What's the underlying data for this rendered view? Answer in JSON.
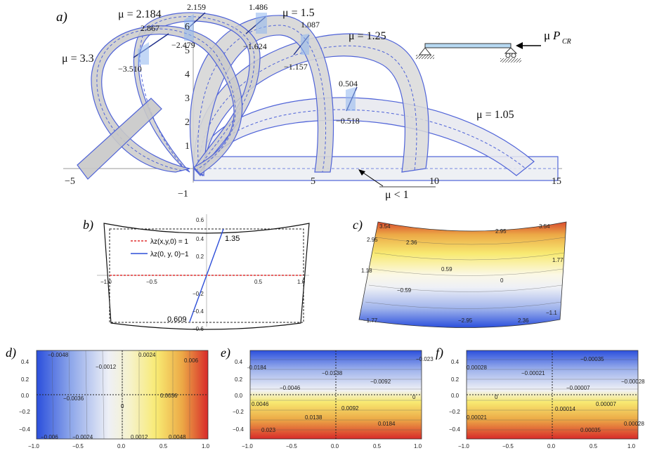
{
  "panels": {
    "a": {
      "label": "a)",
      "x_ticks": [
        "−5",
        "5",
        "10",
        "15"
      ],
      "y_ticks": [
        "−1",
        "1",
        "2",
        "3",
        "4",
        "5",
        "6"
      ],
      "mu_labels": [
        "μ = 3.3",
        "μ = 2.184",
        "μ = 1.5",
        "μ = 1.25",
        "μ = 1.05",
        "μ < 1"
      ],
      "values": [
        "2.867",
        "−3.510",
        "2.159",
        "−2.479",
        "1.486",
        "−1.624",
        "1.087",
        "−1.157",
        "0.504",
        "−0.518"
      ],
      "load_label_mu": "μ",
      "load_label_p": "P",
      "load_label_sub": "CR"
    },
    "b": {
      "label": "b)",
      "legend": [
        "λz(x,y,0) = 1",
        "λz(0, y, 0)−1"
      ],
      "x_ticks": [
        "−1.0",
        "−0.5",
        "0.5",
        "1.0"
      ],
      "y_ticks": [
        "0.6",
        "0.4",
        "0.2",
        "−0.2",
        "−0.4",
        "−0.6"
      ],
      "annotations": [
        "1.35",
        "0.609"
      ]
    },
    "c": {
      "label": "c)",
      "contour_labels": [
        "3.54",
        "2.95",
        "3.54",
        "2.95",
        "2.36",
        "1.77",
        "1.18",
        "0.59",
        "0",
        "−0.59",
        "−1.1",
        "−1.77",
        "−2.95",
        "2.36"
      ]
    },
    "d": {
      "label": "d)",
      "contour_labels": [
        "−0.0048",
        "−0.0012",
        "0.0024",
        "0.006",
        "−0.0036",
        "0",
        "0.0036",
        "−0.006",
        "−0.0024",
        "0.0012",
        "0.0048"
      ]
    },
    "e": {
      "label": "e)",
      "contour_labels": [
        "-0.0184",
        "−0.0138",
        "−0.0092",
        "−0.0046",
        "0.0046",
        "0.0092",
        "0.0138",
        "0.0184",
        "0.023",
        "0",
        "−0.023"
      ]
    },
    "f": {
      "label": "f)",
      "contour_labels": [
        "0.00028",
        "−0.00035",
        "−0.00021",
        "−0.00007",
        "0",
        "0.00014",
        "0.00007",
        "0.00035",
        "0.00021",
        "0.00028",
        "−0.00028"
      ]
    },
    "shared_axes": {
      "x_ticks": [
        "−1.0",
        "−0.5",
        "0.0",
        "0.5",
        "1.0"
      ],
      "y_ticks": [
        "0.4",
        "0.2",
        "0.0",
        "−0.2",
        "−0.4"
      ]
    }
  },
  "colors": {
    "band_fill": "#d6d6d6",
    "band_stroke": "#4f63d8",
    "band_light": "#e4e6ee",
    "contour_blue_dark": "#2b4fdc",
    "contour_red": "#d82a2a",
    "contour_yellow": "#f8ea72",
    "legend_red": "#e03030",
    "legend_blue": "#2d4ed8"
  }
}
